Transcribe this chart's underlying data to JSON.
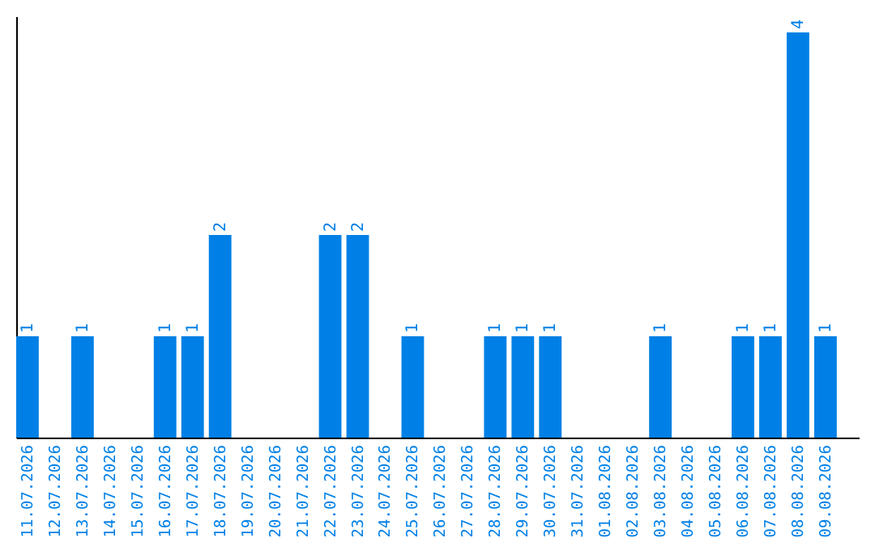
{
  "chart_data": {
    "type": "bar",
    "categories": [
      "11.07.2026",
      "12.07.2026",
      "13.07.2026",
      "14.07.2026",
      "15.07.2026",
      "16.07.2026",
      "17.07.2026",
      "18.07.2026",
      "19.07.2026",
      "20.07.2026",
      "21.07.2026",
      "22.07.2026",
      "23.07.2026",
      "24.07.2026",
      "25.07.2026",
      "26.07.2026",
      "27.07.2026",
      "28.07.2026",
      "29.07.2026",
      "30.07.2026",
      "31.07.2026",
      "01.08.2026",
      "02.08.2026",
      "03.08.2026",
      "04.08.2026",
      "05.08.2026",
      "06.08.2026",
      "07.08.2026",
      "08.08.2026",
      "09.08.2026"
    ],
    "values": [
      1,
      0,
      1,
      0,
      0,
      1,
      1,
      2,
      0,
      0,
      0,
      2,
      2,
      0,
      1,
      0,
      0,
      1,
      1,
      1,
      0,
      0,
      0,
      1,
      0,
      0,
      1,
      1,
      4,
      1
    ],
    "value_labels": [
      "1",
      null,
      "1",
      null,
      null,
      "1",
      "1",
      "2",
      null,
      null,
      null,
      "2",
      "2",
      null,
      "1",
      null,
      null,
      "1",
      "1",
      "1",
      null,
      null,
      null,
      "1",
      null,
      null,
      "1",
      "1",
      "4",
      "1"
    ],
    "color": "#0080e6",
    "tick_labels": "x",
    "grid": false
  }
}
